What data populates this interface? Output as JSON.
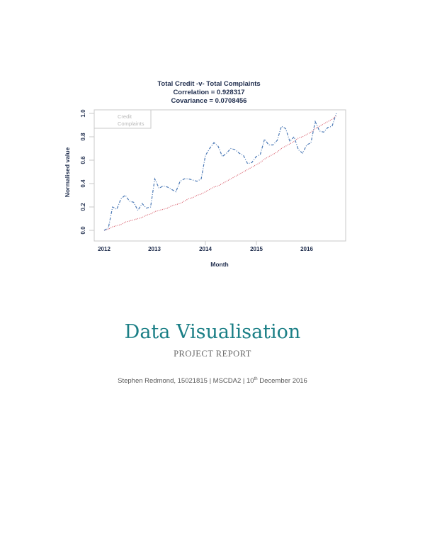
{
  "document": {
    "title": "Data Visualisation",
    "subtitle": "PROJECT REPORT",
    "author": "Stephen Redmond",
    "student_id": "15021815",
    "course": "MSCDA2",
    "date_day": "10",
    "date_suffix": "th",
    "date_rest": "December 2016",
    "separator": "|"
  },
  "chart": {
    "title_line1": "Total Credit -v- Total Complaints",
    "title_line2": "Correlation = 0.928317",
    "title_line3": "Covariance = 0.0708456",
    "xlabel": "Month",
    "ylabel": "Normalised value"
  },
  "chart_data": {
    "type": "line",
    "title": "Total Credit -v- Total Complaints",
    "subtitle": [
      "Correlation = 0.928317",
      "Covariance = 0.0708456"
    ],
    "xlabel": "Month",
    "ylabel": "Normalised value",
    "x_ticks": [
      "2012",
      "2013",
      "2014",
      "2015",
      "2016"
    ],
    "y_ticks": [
      "0.0",
      "0.2",
      "0.4",
      "0.6",
      "0.8",
      "1.0"
    ],
    "ylim": [
      0,
      1
    ],
    "xlim": [
      "2012-01",
      "2016-08"
    ],
    "legend": {
      "position": "top-left",
      "entries": [
        "Credit",
        "Complaints"
      ]
    },
    "grid": false,
    "colors": {
      "Complaints": "#4a78b5",
      "Credit": "#d9606e",
      "axis": "#bfbfbf",
      "title": "#1f2d4d"
    },
    "x": [
      "2012-01",
      "2012-02",
      "2012-03",
      "2012-04",
      "2012-05",
      "2012-06",
      "2012-07",
      "2012-08",
      "2012-09",
      "2012-10",
      "2012-11",
      "2012-12",
      "2013-01",
      "2013-02",
      "2013-03",
      "2013-04",
      "2013-05",
      "2013-06",
      "2013-07",
      "2013-08",
      "2013-09",
      "2013-10",
      "2013-11",
      "2013-12",
      "2014-01",
      "2014-02",
      "2014-03",
      "2014-04",
      "2014-05",
      "2014-06",
      "2014-07",
      "2014-08",
      "2014-09",
      "2014-10",
      "2014-11",
      "2014-12",
      "2015-01",
      "2015-02",
      "2015-03",
      "2015-04",
      "2015-05",
      "2015-06",
      "2015-07",
      "2015-08",
      "2015-09",
      "2015-10",
      "2015-11",
      "2015-12",
      "2016-01",
      "2016-02",
      "2016-03",
      "2016-04",
      "2016-05",
      "2016-06",
      "2016-07",
      "2016-08"
    ],
    "series": [
      {
        "name": "Complaints",
        "style": "dashed",
        "values": [
          0.0,
          0.02,
          0.2,
          0.18,
          0.27,
          0.3,
          0.25,
          0.24,
          0.17,
          0.23,
          0.19,
          0.2,
          0.44,
          0.36,
          0.38,
          0.37,
          0.35,
          0.33,
          0.42,
          0.44,
          0.44,
          0.43,
          0.42,
          0.44,
          0.64,
          0.7,
          0.75,
          0.72,
          0.63,
          0.66,
          0.7,
          0.69,
          0.66,
          0.64,
          0.57,
          0.58,
          0.63,
          0.65,
          0.78,
          0.73,
          0.73,
          0.77,
          0.89,
          0.87,
          0.76,
          0.8,
          0.69,
          0.66,
          0.73,
          0.75,
          0.93,
          0.85,
          0.84,
          0.88,
          0.89,
          1.0
        ]
      },
      {
        "name": "Credit",
        "style": "dotted",
        "values": [
          0.0,
          0.01,
          0.03,
          0.04,
          0.05,
          0.07,
          0.08,
          0.09,
          0.1,
          0.11,
          0.13,
          0.14,
          0.16,
          0.17,
          0.18,
          0.19,
          0.21,
          0.22,
          0.23,
          0.25,
          0.27,
          0.28,
          0.3,
          0.31,
          0.33,
          0.35,
          0.37,
          0.38,
          0.4,
          0.42,
          0.44,
          0.46,
          0.48,
          0.5,
          0.52,
          0.54,
          0.56,
          0.58,
          0.61,
          0.63,
          0.65,
          0.67,
          0.7,
          0.72,
          0.74,
          0.76,
          0.79,
          0.8,
          0.82,
          0.84,
          0.87,
          0.89,
          0.91,
          0.93,
          0.95,
          0.98
        ]
      }
    ]
  }
}
